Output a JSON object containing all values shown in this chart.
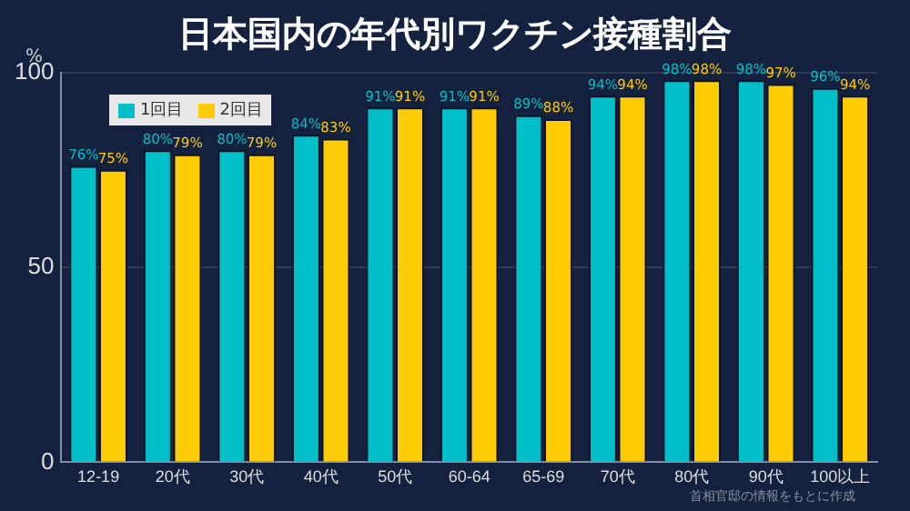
{
  "chart_data": {
    "type": "bar",
    "title": "日本国内の年代別ワクチン接種割合",
    "ylabel": "%",
    "categories": [
      "12-19",
      "20代",
      "30代",
      "40代",
      "50代",
      "60-64",
      "65-69",
      "70代",
      "80代",
      "90代",
      "100以上"
    ],
    "series": [
      {
        "name": "1回目",
        "color": "#00bfc8",
        "values": [
          76,
          80,
          80,
          84,
          91,
          91,
          89,
          94,
          98,
          98,
          96
        ],
        "value_labels": [
          "76%",
          "80%",
          "80%",
          "84%",
          "91%",
          "91%",
          "89%",
          "94%",
          "98%",
          "98%",
          "96%"
        ]
      },
      {
        "name": "2回目",
        "color": "#ffcb05",
        "values": [
          75,
          79,
          79,
          83,
          91,
          91,
          88,
          94,
          98,
          97,
          94
        ],
        "value_labels": [
          "75%",
          "79%",
          "79%",
          "83%",
          "91%",
          "91%",
          "88%",
          "94%",
          "98%",
          "97%",
          "94%"
        ]
      }
    ],
    "ylim": [
      0,
      100
    ],
    "yticks": [
      0,
      50,
      100
    ],
    "grid": "y",
    "legend": "top left",
    "annotations": [
      "首相官邸の情報をもとに作成"
    ]
  }
}
